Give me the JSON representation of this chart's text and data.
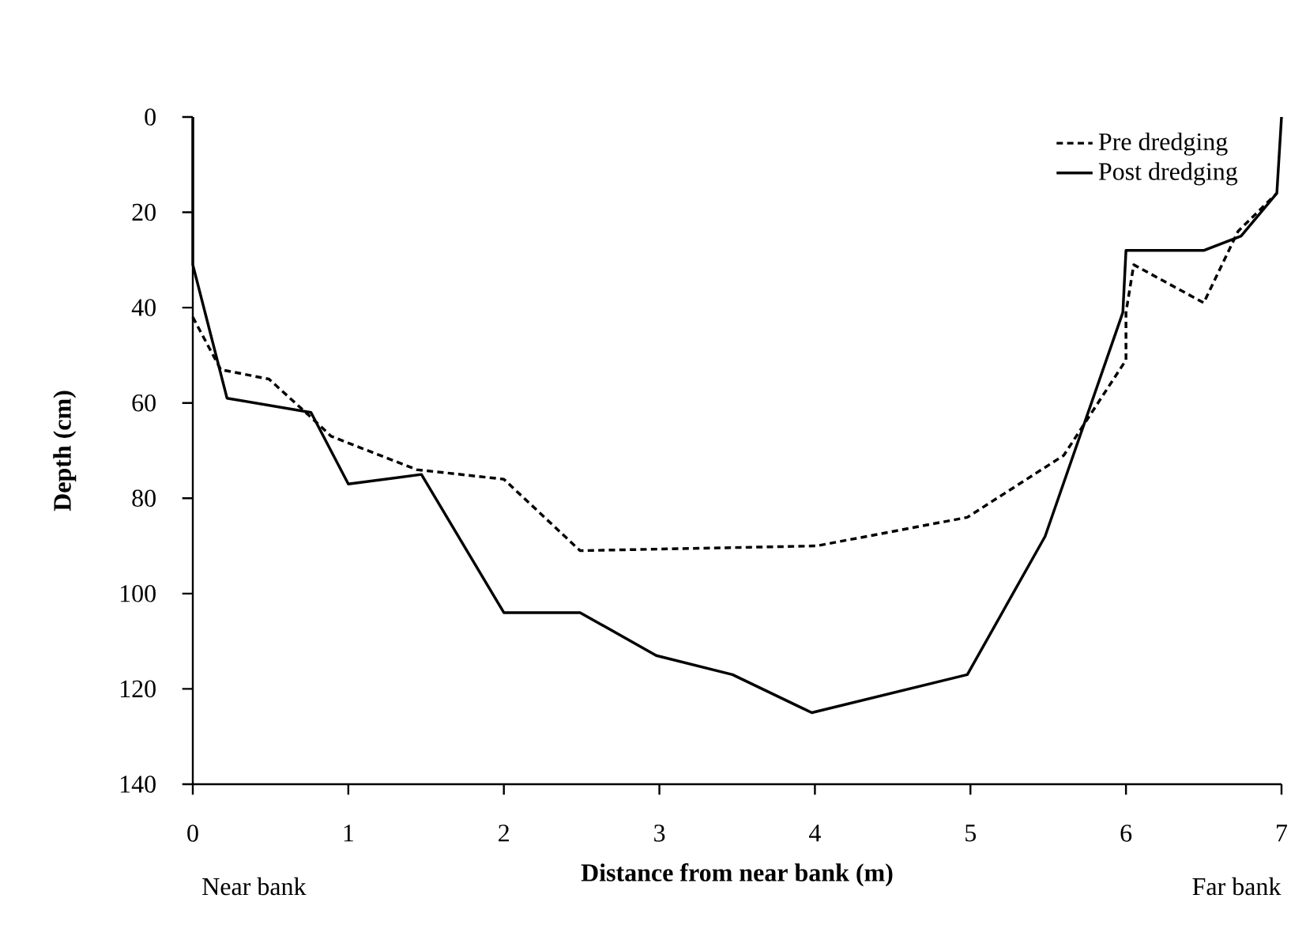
{
  "chart_data": {
    "type": "line",
    "xlabel": "Distance from near bank (m)",
    "ylabel": "Depth (cm)",
    "xlim": [
      0,
      7
    ],
    "xticks": [
      0,
      1,
      2,
      3,
      4,
      5,
      6,
      7
    ],
    "ylim": [
      140,
      0
    ],
    "yticks": [
      0,
      20,
      40,
      60,
      80,
      100,
      120,
      140
    ],
    "legend": "top right",
    "grid": false,
    "annotations": [
      "Near bank",
      "Far bank"
    ],
    "series": [
      {
        "name": "Pre dredging",
        "color": "#000000",
        "line_style": "dashed",
        "x": [
          0,
          0.18,
          0.49,
          0.76,
          0.89,
          1.44,
          2.0,
          2.49,
          4.01,
          4.98,
          5.6,
          6.0,
          6.0,
          6.05,
          6.5,
          6.72,
          6.97
        ],
        "values": [
          42,
          53,
          55,
          63,
          67,
          74,
          76,
          91,
          90,
          84,
          71,
          51,
          41,
          31,
          39,
          24,
          16
        ]
      },
      {
        "name": "Post dredging",
        "color": "#000000",
        "line_style": "solid",
        "x": [
          0,
          0,
          0.22,
          0.76,
          1.0,
          1.47,
          2.0,
          2.49,
          2.98,
          3.47,
          3.98,
          4.98,
          5.48,
          5.98,
          6.0,
          6.5,
          6.74,
          6.97,
          7
        ],
        "values": [
          0,
          31,
          59,
          62,
          77,
          75,
          104,
          104,
          113,
          117,
          125,
          117,
          88,
          41,
          28,
          28,
          25,
          16,
          0
        ]
      }
    ]
  }
}
